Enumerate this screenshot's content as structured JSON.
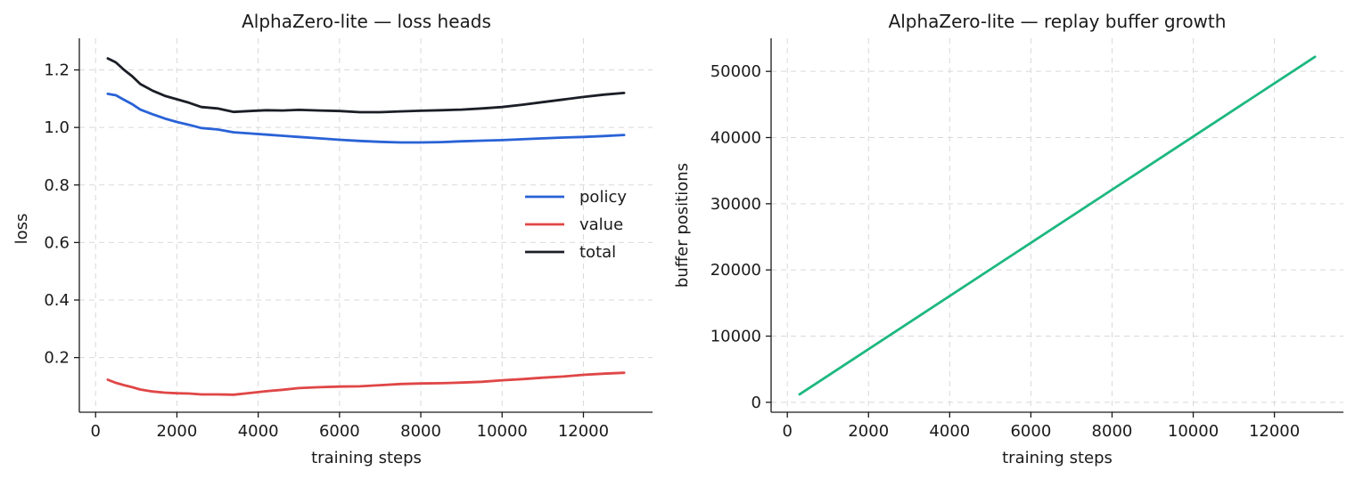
{
  "chart_data": [
    {
      "type": "line",
      "title": "AlphaZero-lite — loss heads",
      "xlabel": "training steps",
      "ylabel": "loss",
      "xlim": [
        -400,
        13700
      ],
      "ylim": [
        0.01,
        1.31
      ],
      "xticks": [
        0,
        2000,
        4000,
        6000,
        8000,
        10000,
        12000
      ],
      "xtick_labels": [
        "0",
        "2000",
        "4000",
        "6000",
        "8000",
        "10000",
        "12000"
      ],
      "yticks": [
        0.2,
        0.4,
        0.6,
        0.8,
        1.0,
        1.2
      ],
      "ytick_labels": [
        "0.2",
        "0.4",
        "0.6",
        "0.8",
        "1.0",
        "1.2"
      ],
      "grid": true,
      "legend_position": "center-right",
      "x": [
        300,
        500,
        700,
        900,
        1100,
        1400,
        1700,
        2000,
        2300,
        2600,
        3000,
        3400,
        3800,
        4200,
        4600,
        5000,
        5500,
        6000,
        6500,
        7000,
        7500,
        8000,
        8500,
        9000,
        9500,
        10000,
        10500,
        11000,
        11500,
        12000,
        12500,
        13000
      ],
      "series": [
        {
          "name": "policy",
          "color": "#2962d6",
          "values": [
            1.117,
            1.112,
            1.096,
            1.081,
            1.062,
            1.046,
            1.031,
            1.019,
            1.009,
            0.998,
            0.993,
            0.983,
            0.979,
            0.975,
            0.971,
            0.967,
            0.962,
            0.957,
            0.953,
            0.95,
            0.948,
            0.948,
            0.949,
            0.952,
            0.954,
            0.956,
            0.959,
            0.962,
            0.965,
            0.967,
            0.97,
            0.974
          ]
        },
        {
          "name": "value",
          "color": "#e04646",
          "values": [
            0.123,
            0.112,
            0.104,
            0.097,
            0.089,
            0.082,
            0.078,
            0.076,
            0.075,
            0.072,
            0.072,
            0.071,
            0.077,
            0.083,
            0.088,
            0.094,
            0.097,
            0.099,
            0.1,
            0.104,
            0.108,
            0.11,
            0.111,
            0.113,
            0.116,
            0.121,
            0.125,
            0.13,
            0.134,
            0.14,
            0.144,
            0.147
          ]
        },
        {
          "name": "total",
          "color": "#1b1e26",
          "values": [
            1.24,
            1.226,
            1.2,
            1.178,
            1.151,
            1.128,
            1.11,
            1.098,
            1.086,
            1.071,
            1.066,
            1.054,
            1.057,
            1.06,
            1.059,
            1.061,
            1.059,
            1.057,
            1.053,
            1.053,
            1.056,
            1.058,
            1.06,
            1.062,
            1.066,
            1.071,
            1.079,
            1.088,
            1.097,
            1.106,
            1.114,
            1.12
          ]
        }
      ]
    },
    {
      "type": "line",
      "title": "AlphaZero-lite — replay buffer growth",
      "xlabel": "training steps",
      "ylabel": "buffer positions",
      "xlim": [
        -400,
        13700
      ],
      "ylim": [
        -1500,
        55000
      ],
      "xticks": [
        0,
        2000,
        4000,
        6000,
        8000,
        10000,
        12000
      ],
      "xtick_labels": [
        "0",
        "2000",
        "4000",
        "6000",
        "8000",
        "10000",
        "12000"
      ],
      "yticks": [
        0,
        10000,
        20000,
        30000,
        40000,
        50000
      ],
      "ytick_labels": [
        "0",
        "10000",
        "20000",
        "30000",
        "40000",
        "50000"
      ],
      "grid": true,
      "x": [
        300,
        13000
      ],
      "series": [
        {
          "color": "#1db880",
          "values": [
            1200,
            52200
          ]
        }
      ]
    }
  ]
}
